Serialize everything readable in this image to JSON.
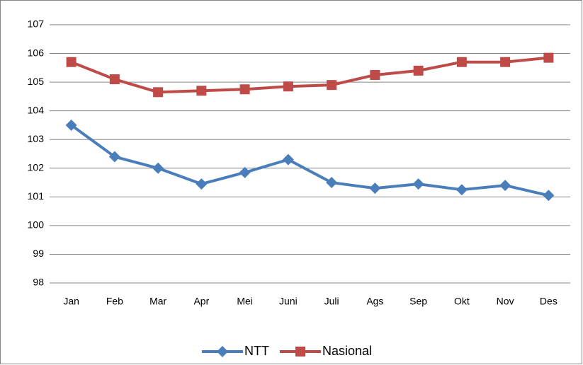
{
  "chart_data": {
    "type": "line",
    "categories": [
      "Jan",
      "Feb",
      "Mar",
      "Apr",
      "Mei",
      "Juni",
      "Juli",
      "Ags",
      "Sep",
      "Okt",
      "Nov",
      "Des"
    ],
    "series": [
      {
        "name": "NTT",
        "color": "#4a7ebb",
        "marker": "diamond",
        "values": [
          103.5,
          102.4,
          102.0,
          101.45,
          101.85,
          102.3,
          101.5,
          101.3,
          101.45,
          101.25,
          101.4,
          101.05
        ]
      },
      {
        "name": "Nasional",
        "color": "#be4b48",
        "marker": "square",
        "values": [
          105.7,
          105.1,
          104.65,
          104.7,
          104.75,
          104.85,
          104.9,
          105.25,
          105.4,
          105.7,
          105.7,
          105.85
        ]
      }
    ],
    "ylim": [
      98,
      107
    ],
    "yticks": [
      98,
      99,
      100,
      101,
      102,
      103,
      104,
      105,
      106,
      107
    ],
    "grid": true,
    "legend": "bottom"
  }
}
